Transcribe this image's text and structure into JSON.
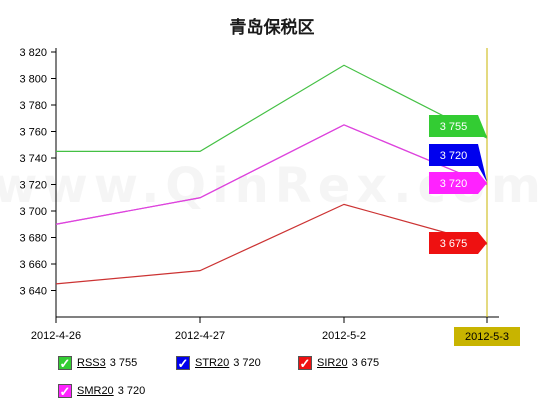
{
  "chart_data": {
    "type": "line",
    "title": "青岛保税区",
    "categories": [
      "2012-4-26",
      "2012-4-27",
      "2012-5-2",
      "2012-5-3"
    ],
    "ylim": [
      3620,
      3820
    ],
    "yticks": [
      3640,
      3660,
      3680,
      3700,
      3720,
      3740,
      3760,
      3780,
      3800,
      3820
    ],
    "ytick_labels": [
      "3 640",
      "3 660",
      "3 680",
      "3 700",
      "3 720",
      "3 740",
      "3 760",
      "3 780",
      "3 800",
      "3 820"
    ],
    "highlighted_category": "2012-5-3",
    "watermark": "www.QinRex.com",
    "series": [
      {
        "name": "RSS3",
        "values": [
          3745,
          3745,
          3810,
          3755
        ],
        "color": "#33cc33",
        "last_label": "3 755"
      },
      {
        "name": "STR20",
        "values": [
          3690,
          3710,
          3765,
          3720
        ],
        "color": "#0000ee",
        "last_label": "3 720"
      },
      {
        "name": "SIR20",
        "values": [
          3645,
          3655,
          3705,
          3675
        ],
        "color": "#ee1111",
        "last_label": "3 675"
      },
      {
        "name": "SMR20",
        "values": [
          3690,
          3710,
          3765,
          3720
        ],
        "color": "#ff22ff",
        "last_label": "3 720"
      }
    ],
    "line_colors": {
      "RSS3": "#44c044",
      "STR20": "#dd44dd",
      "SIR20": "#cc3333",
      "SMR20": "#dd44dd"
    },
    "highlight_color": "#c8b400",
    "grid": false,
    "legend_position": "bottom"
  },
  "legend": {
    "items": [
      {
        "name": "RSS3",
        "value": "3 755"
      },
      {
        "name": "STR20",
        "value": "3 720"
      },
      {
        "name": "SIR20",
        "value": "3 675"
      },
      {
        "name": "SMR20",
        "value": "3 720"
      }
    ],
    "check_glyph": "✓"
  }
}
